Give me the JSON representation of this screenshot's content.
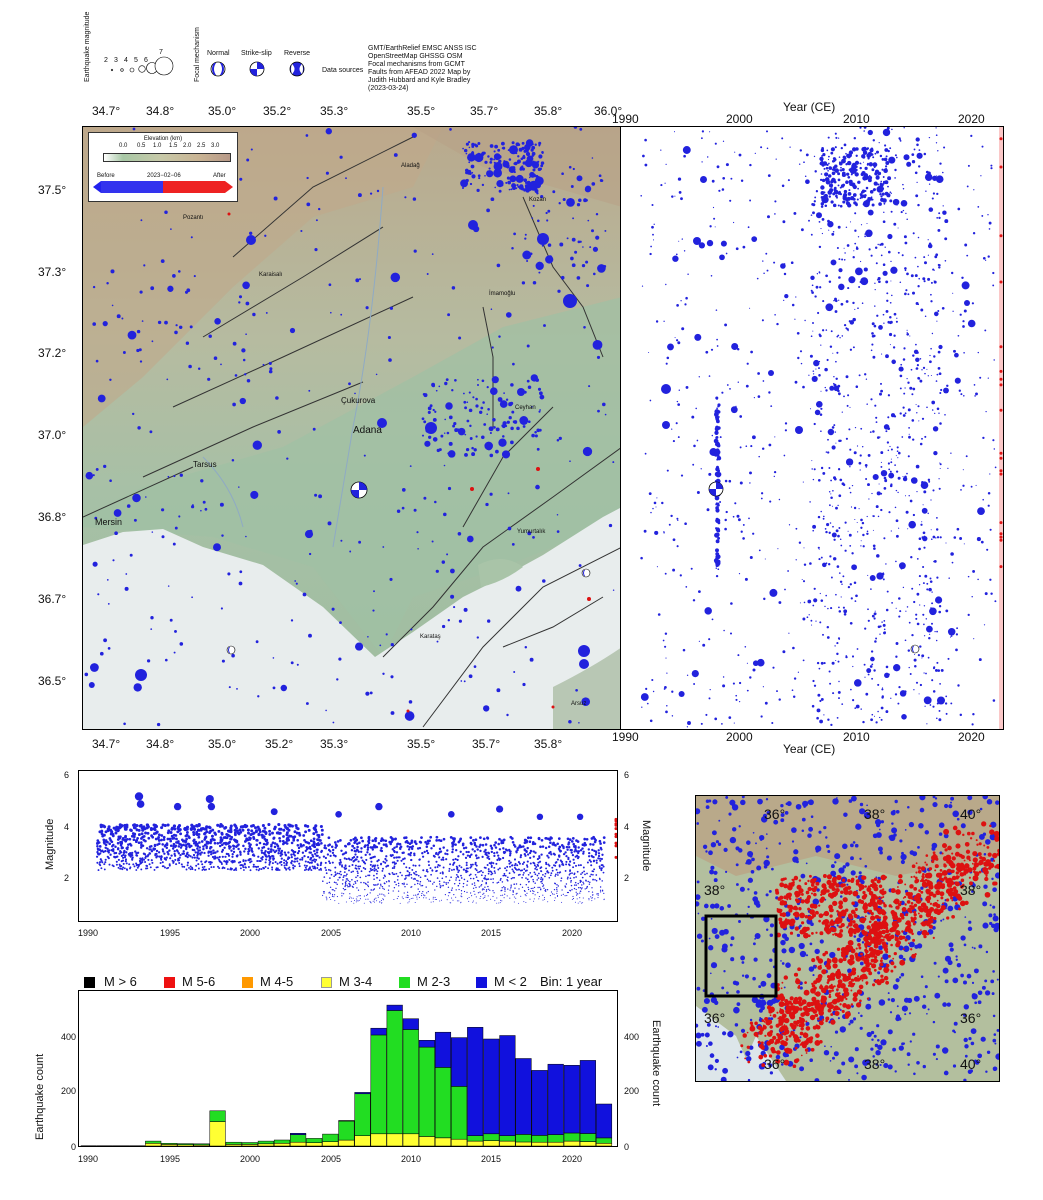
{
  "top_legend": {
    "eq_mag_label": "Earthquake magnitude",
    "mag_values": [
      "2",
      "3",
      "4",
      "5",
      "6",
      "7"
    ],
    "focal_label": "Focal mechanism",
    "mech_types": [
      "Normal",
      "Strike-slip",
      "Reverse"
    ],
    "data_sources_label": "Data sources",
    "data_sources_lines": [
      "GMT/EarthRelief EMSC ANSS ISC",
      "OpenStreetMap GHSSG OSM",
      "Focal mechanisms from GCMT",
      "Faults from AFEAD 2022 Map by",
      "Judith Hubbard and Kyle Bradley",
      "(2023-03-24)"
    ]
  },
  "map": {
    "lon_ticks": [
      "34.7°",
      "34.8°",
      "35.0°",
      "35.2°",
      "35.3°",
      "35.5°",
      "35.7°",
      "35.8°",
      "36.0°"
    ],
    "lat_ticks": [
      "37.5°",
      "37.3°",
      "37.2°",
      "37.0°",
      "36.8°",
      "36.7°",
      "36.5°"
    ],
    "places": [
      {
        "name": "Adana",
        "cls": "big"
      },
      {
        "name": "Çukurova",
        "cls": "mid"
      },
      {
        "name": "Tarsus",
        "cls": "mid"
      },
      {
        "name": "Mersin",
        "cls": "mid"
      },
      {
        "name": "Kozan",
        "cls": "small"
      },
      {
        "name": "İmamoğlu",
        "cls": "small"
      },
      {
        "name": "Ceyhan",
        "cls": "small"
      },
      {
        "name": "Yumurtalık",
        "cls": "small"
      },
      {
        "name": "Karataş",
        "cls": "small"
      },
      {
        "name": "Pozantı",
        "cls": "small"
      },
      {
        "name": "Karaisalı",
        "cls": "small"
      },
      {
        "name": "Aladağ",
        "cls": "small"
      },
      {
        "name": "Arsuz",
        "cls": "small"
      }
    ],
    "elev_legend": {
      "title": "Elevation (km)",
      "ticks": [
        "0.0",
        "0.5",
        "1.0",
        "1.5",
        "2.0",
        "2.5",
        "3.0"
      ],
      "before": "Before",
      "date": "2023−02−06",
      "after": "After"
    },
    "colors": {
      "before": "#2222dd",
      "after": "#dd1111",
      "land": "#9fbfa0",
      "sea": "#e6ecec"
    }
  },
  "time_panel": {
    "xlabel": "Year (CE)",
    "year_ticks": [
      "1990",
      "2000",
      "2010",
      "2020"
    ]
  },
  "magnitude_chart": {
    "ylabel": "Magnitude",
    "y_ticks": [
      "6",
      "4",
      "2"
    ],
    "x_ticks": [
      "1990",
      "1995",
      "2000",
      "2005",
      "2010",
      "2015",
      "2020"
    ]
  },
  "count_legend": {
    "items": [
      {
        "label": "M > 6",
        "color": "#000000"
      },
      {
        "label": "M 5-6",
        "color": "#ee1111"
      },
      {
        "label": "M 4-5",
        "color": "#ff9900"
      },
      {
        "label": "M 3-4",
        "color": "#ffff33"
      },
      {
        "label": "M 2-3",
        "color": "#22dd22"
      },
      {
        "label": "M < 2",
        "color": "#1111dd"
      }
    ],
    "bin_label": "Bin: 1 year"
  },
  "count_chart": {
    "ylabel": "Earthquake count",
    "y_ticks": [
      "0",
      "200",
      "400"
    ]
  },
  "inset_map": {
    "labels": [
      "36°",
      "38°",
      "40°",
      "38°",
      "38°",
      "36°",
      "36°",
      "36°",
      "38°",
      "40°"
    ]
  },
  "chart_data": {
    "type": "bar",
    "title": "",
    "xlabel": "",
    "ylabel": "Earthquake count",
    "x_ticks": [
      "1990",
      "1995",
      "2000",
      "2005",
      "2010",
      "2015",
      "2020"
    ],
    "ylim": [
      0,
      550
    ],
    "categories": [
      "1990",
      "1991",
      "1992",
      "1993",
      "1994",
      "1995",
      "1996",
      "1997",
      "1998",
      "1999",
      "2000",
      "2001",
      "2002",
      "2003",
      "2004",
      "2005",
      "2006",
      "2007",
      "2008",
      "2009",
      "2010",
      "2011",
      "2012",
      "2013",
      "2014",
      "2015",
      "2016",
      "2017",
      "2018",
      "2019",
      "2020",
      "2021",
      "2022"
    ],
    "series": [
      {
        "name": "M 3-4",
        "values": [
          1,
          1,
          1,
          1,
          10,
          6,
          5,
          4,
          90,
          6,
          6,
          8,
          10,
          14,
          12,
          16,
          22,
          38,
          45,
          45,
          45,
          35,
          30,
          25,
          18,
          20,
          18,
          15,
          14,
          14,
          18,
          16,
          10
        ]
      },
      {
        "name": "M 2-3",
        "values": [
          0,
          0,
          0,
          0,
          8,
          4,
          4,
          4,
          40,
          8,
          7,
          10,
          12,
          28,
          16,
          28,
          70,
          155,
          365,
          455,
          385,
          330,
          260,
          195,
          20,
          25,
          20,
          28,
          25,
          28,
          30,
          30,
          20
        ]
      },
      {
        "name": "M < 2",
        "values": [
          0,
          0,
          0,
          0,
          0,
          0,
          0,
          0,
          0,
          0,
          0,
          0,
          0,
          5,
          0,
          0,
          2,
          5,
          25,
          20,
          40,
          25,
          130,
          180,
          400,
          350,
          370,
          280,
          240,
          260,
          250,
          270,
          125
        ]
      }
    ]
  }
}
